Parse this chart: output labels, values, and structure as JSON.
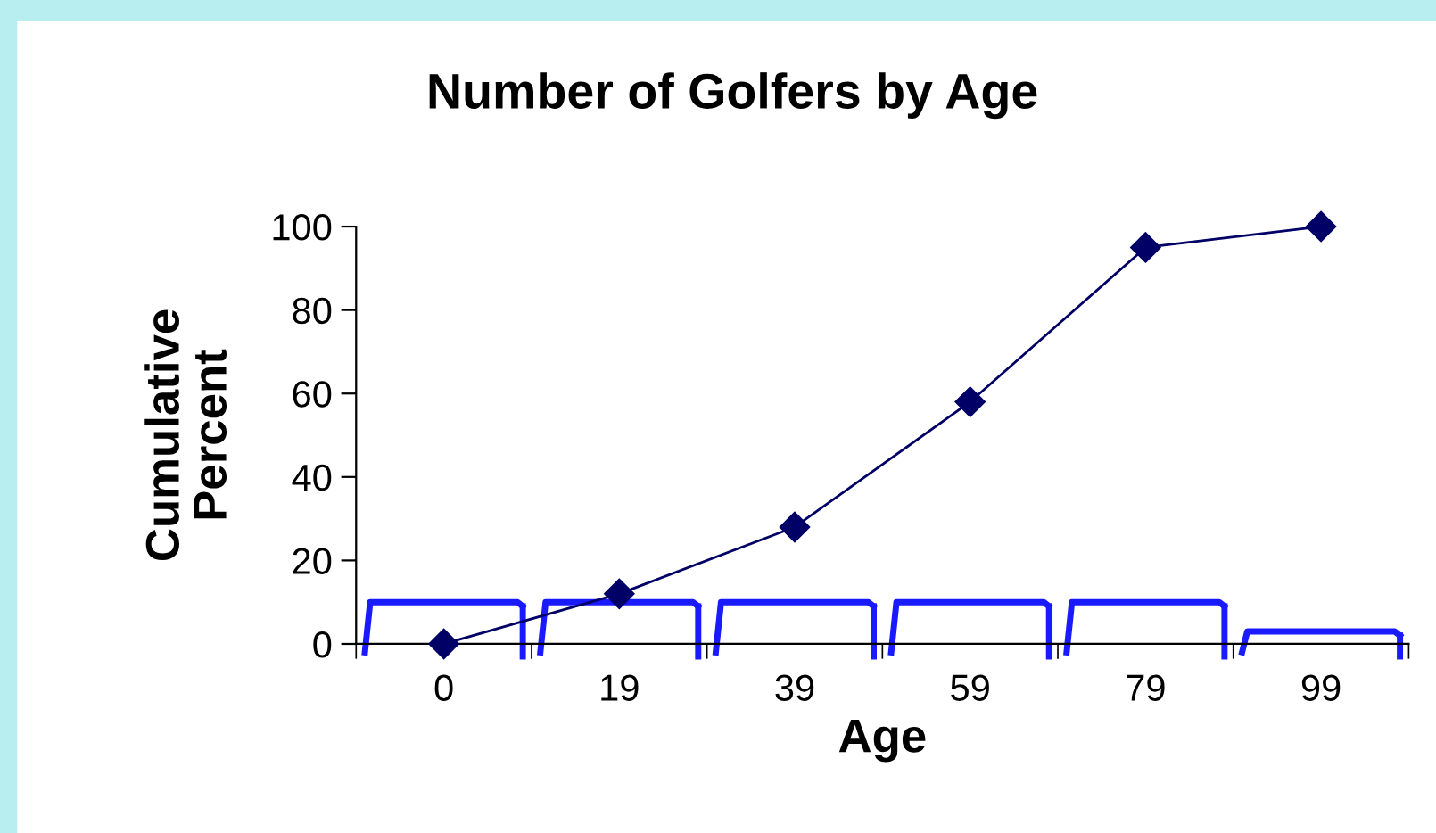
{
  "chart_data": {
    "type": "line",
    "title": "Number of Golfers by Age",
    "xlabel": "Age",
    "ylabel": "Cumulative\nPercent",
    "categories": [
      "0",
      "19",
      "39",
      "59",
      "79",
      "99"
    ],
    "series": [
      {
        "color": "#000066",
        "values": [
          0,
          12,
          28,
          58,
          95,
          100
        ]
      }
    ],
    "ylim": [
      0,
      100
    ],
    "yticks": [
      0,
      20,
      40,
      60,
      80,
      100
    ],
    "grid": false,
    "legend": false,
    "marker": "diamond",
    "line_style": "solid"
  }
}
